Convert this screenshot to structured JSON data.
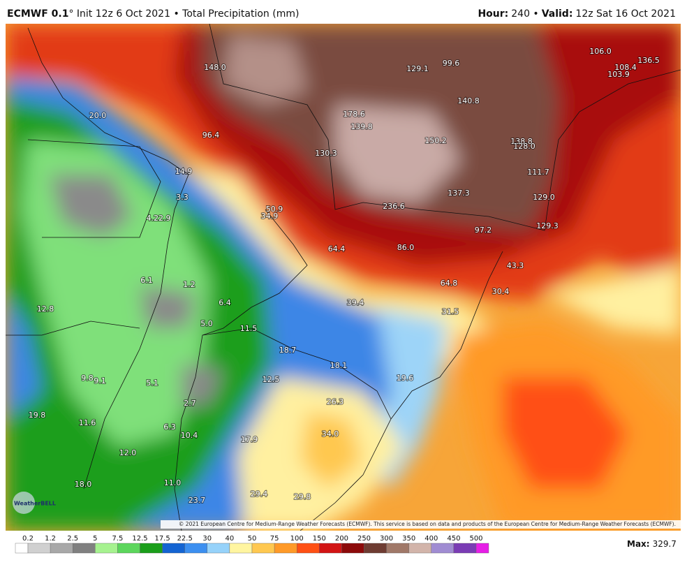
{
  "header": {
    "model": "ECMWF 0.1",
    "title_rest": "° Init 12z 6 Oct 2021 • Total Precipitation (mm)",
    "hour_label": "Hour:",
    "hour_value": "240 •",
    "valid_label": "Valid:",
    "valid_value": "12z Sat 16 Oct 2021"
  },
  "map": {
    "labels": [
      "106.0",
      "136.5",
      "108.4",
      "103.9",
      "99.6",
      "129.1",
      "148.0",
      "140.8",
      "178.6",
      "139.8",
      "20.0",
      "96.4",
      "150.2",
      "138.8",
      "128.0",
      "130.3",
      "14.9",
      "111.7",
      "137.3",
      "129.0",
      "3.3",
      "236.6",
      "50.9",
      "34.9",
      "4.22.9",
      "129.3",
      "97.2",
      "64.4",
      "86.0",
      "43.3",
      "6.1",
      "64.8",
      "1.2",
      "30.4",
      "39.4",
      "6.4",
      "12.8",
      "31.5",
      "5.0",
      "11.5",
      "18.7",
      "18.1",
      "12.5",
      "19.6",
      "9.8",
      "9.1",
      "5.1",
      "26.3",
      "2.7",
      "19.8",
      "11.6",
      "6.3",
      "34.0",
      "10.4",
      "17.9",
      "12.0",
      "18.0",
      "11.0",
      "29.4",
      "29.8",
      "23.7"
    ]
  },
  "logo": "WeatherBELL",
  "copyright": "© 2021 European Centre for Medium-Range Weather Forecasts (ECMWF). This service is based on data and products of the European Centre for Medium-Range Weather Forecasts (ECMWF).",
  "colorbar": {
    "ticks": [
      0.2,
      1.2,
      2.5,
      5,
      7.5,
      12.5,
      17.5,
      22.5,
      30,
      40,
      50,
      75,
      100,
      150,
      200,
      250,
      300,
      350,
      400,
      450,
      500
    ],
    "colors": [
      "#ffffff",
      "#d0d0d0",
      "#a8a8a8",
      "#808080",
      "#a6f28f",
      "#5cd65c",
      "#1a9e1a",
      "#1464d2",
      "#3c8ff0",
      "#96d2fa",
      "#fff5a0",
      "#ffc850",
      "#ff9a28",
      "#ff5014",
      "#d21414",
      "#8c0a0a",
      "#6e3c32",
      "#a07868",
      "#d2b4aa",
      "#a08cd2",
      "#7a3cb4",
      "#e61ee6"
    ]
  },
  "max": {
    "label": "Max:",
    "value": "329.7"
  }
}
